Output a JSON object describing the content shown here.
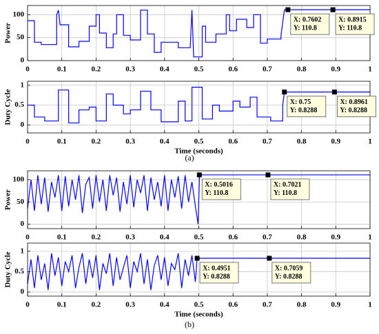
{
  "captions": [
    "(a)",
    "(b)"
  ],
  "chart_data": [
    {
      "type": "line",
      "ylabel": "Power",
      "color": "#0000ff",
      "grid": true,
      "xlim": [
        0,
        1
      ],
      "xticks": [
        0,
        0.1,
        0.2,
        0.3,
        0.4,
        0.5,
        0.6,
        0.7,
        0.8,
        0.9,
        1
      ],
      "ylim": [
        0,
        120
      ],
      "yticks": [
        0,
        50,
        100
      ],
      "x": [
        0,
        0.02,
        0.02,
        0.04,
        0.04,
        0.085,
        0.085,
        0.09,
        0.095,
        0.12,
        0.12,
        0.15,
        0.15,
        0.18,
        0.18,
        0.2,
        0.2,
        0.21,
        0.21,
        0.23,
        0.23,
        0.25,
        0.25,
        0.26,
        0.26,
        0.28,
        0.28,
        0.3,
        0.3,
        0.33,
        0.33,
        0.35,
        0.35,
        0.37,
        0.37,
        0.39,
        0.39,
        0.44,
        0.44,
        0.475,
        0.475,
        0.48,
        0.485,
        0.51,
        0.51,
        0.52,
        0.52,
        0.55,
        0.55,
        0.58,
        0.58,
        0.59,
        0.59,
        0.61,
        0.61,
        0.64,
        0.64,
        0.66,
        0.66,
        0.68,
        0.68,
        0.7,
        0.7,
        0.74,
        0.74,
        0.75,
        1
      ],
      "values": [
        87,
        87,
        40,
        40,
        35,
        35,
        100,
        110,
        78,
        78,
        30,
        30,
        42,
        42,
        75,
        75,
        100,
        100,
        60,
        60,
        28,
        28,
        58,
        58,
        100,
        100,
        55,
        55,
        45,
        45,
        110,
        110,
        58,
        58,
        18,
        18,
        40,
        40,
        28,
        28,
        30,
        110,
        8,
        8,
        75,
        75,
        40,
        40,
        58,
        58,
        100,
        100,
        65,
        65,
        90,
        90,
        72,
        72,
        100,
        100,
        38,
        38,
        47,
        47,
        55,
        110.8,
        110.8
      ],
      "datatips": [
        {
          "x": 0.7602,
          "y": 110.8,
          "x_label": "X: 0.7602",
          "y_label": "Y: 110.8"
        },
        {
          "x": 0.8915,
          "y": 110.8,
          "x_label": "X: 0.8915",
          "y_label": "Y: 110.8"
        }
      ]
    },
    {
      "type": "line",
      "ylabel": "Duty Cycle",
      "xlabel": "Time (seconds)",
      "color": "#0000ff",
      "grid": true,
      "xlim": [
        0,
        1
      ],
      "xticks": [
        0,
        0.1,
        0.2,
        0.3,
        0.4,
        0.5,
        0.6,
        0.7,
        0.8,
        0.9,
        1
      ],
      "ylim": [
        -0.2,
        1.1
      ],
      "yticks": [
        0,
        0.5,
        1
      ],
      "x": [
        0,
        0.02,
        0.02,
        0.05,
        0.05,
        0.09,
        0.09,
        0.12,
        0.12,
        0.15,
        0.15,
        0.18,
        0.18,
        0.2,
        0.2,
        0.23,
        0.23,
        0.25,
        0.25,
        0.28,
        0.28,
        0.3,
        0.3,
        0.33,
        0.33,
        0.36,
        0.36,
        0.39,
        0.39,
        0.44,
        0.44,
        0.46,
        0.46,
        0.48,
        0.48,
        0.51,
        0.51,
        0.54,
        0.54,
        0.56,
        0.56,
        0.6,
        0.6,
        0.62,
        0.62,
        0.65,
        0.65,
        0.67,
        0.67,
        0.71,
        0.71,
        0.745,
        0.745,
        0.75,
        1
      ],
      "values": [
        0.5,
        0.5,
        0.2,
        0.2,
        0.1,
        0.1,
        0.88,
        0.88,
        0.05,
        0.05,
        0.38,
        0.38,
        0.45,
        0.45,
        0.1,
        0.1,
        0.78,
        0.78,
        0.5,
        0.5,
        0.28,
        0.28,
        0.38,
        0.38,
        0.85,
        0.85,
        0.38,
        0.38,
        0.08,
        0.08,
        0.6,
        0.6,
        0.1,
        0.1,
        0.95,
        0.95,
        0.15,
        0.15,
        0.5,
        0.5,
        0.35,
        0.35,
        0.6,
        0.6,
        0.45,
        0.45,
        0.7,
        0.7,
        0.2,
        0.2,
        0.1,
        0.1,
        0.5,
        0.8288,
        0.8288
      ],
      "datatips": [
        {
          "x": 0.75,
          "y": 0.8288,
          "x_label": "X: 0.75",
          "y_label": "Y: 0.8288"
        },
        {
          "x": 0.8961,
          "y": 0.8288,
          "x_label": "X: 0.8961",
          "y_label": "Y: 0.8288"
        }
      ]
    },
    {
      "type": "line",
      "ylabel": "Power",
      "color": "#0000ff",
      "grid": true,
      "xlim": [
        0,
        1
      ],
      "xticks": [
        0,
        0.1,
        0.2,
        0.3,
        0.4,
        0.5,
        0.6,
        0.7,
        0.8,
        0.9,
        1
      ],
      "ylim": [
        -10,
        120
      ],
      "yticks": [
        0,
        50,
        100
      ],
      "x": [
        0,
        0.01,
        0.02,
        0.03,
        0.04,
        0.05,
        0.06,
        0.07,
        0.08,
        0.09,
        0.1,
        0.11,
        0.12,
        0.13,
        0.14,
        0.15,
        0.16,
        0.17,
        0.18,
        0.19,
        0.2,
        0.21,
        0.22,
        0.23,
        0.24,
        0.25,
        0.26,
        0.27,
        0.28,
        0.29,
        0.3,
        0.31,
        0.32,
        0.33,
        0.34,
        0.35,
        0.36,
        0.37,
        0.38,
        0.39,
        0.4,
        0.41,
        0.42,
        0.43,
        0.44,
        0.45,
        0.46,
        0.47,
        0.48,
        0.49,
        0.498,
        0.502,
        1
      ],
      "values": [
        35,
        100,
        30,
        110,
        45,
        105,
        28,
        95,
        60,
        110,
        30,
        108,
        40,
        100,
        55,
        110,
        25,
        90,
        105,
        35,
        110,
        50,
        100,
        30,
        110,
        65,
        105,
        28,
        95,
        45,
        110,
        38,
        100,
        70,
        110,
        30,
        105,
        55,
        95,
        40,
        110,
        30,
        100,
        60,
        108,
        35,
        110,
        50,
        95,
        40,
        0,
        110.8,
        110.8
      ],
      "datatips": [
        {
          "x": 0.5016,
          "y": 110.8,
          "x_label": "X: 0.5016",
          "y_label": "Y: 110.8"
        },
        {
          "x": 0.7021,
          "y": 110.8,
          "x_label": "X: 0.7021",
          "y_label": "Y: 110.8"
        }
      ]
    },
    {
      "type": "line",
      "ylabel": "Duty Cycle",
      "xlabel": "Time (seconds)",
      "color": "#0000ff",
      "grid": true,
      "xlim": [
        0,
        1
      ],
      "xticks": [
        0,
        0.1,
        0.2,
        0.3,
        0.4,
        0.5,
        0.6,
        0.7,
        0.8,
        0.9,
        1
      ],
      "ylim": [
        -0.1,
        1.2
      ],
      "yticks": [
        0,
        0.5,
        1
      ],
      "x": [
        0,
        0.01,
        0.02,
        0.03,
        0.04,
        0.05,
        0.06,
        0.07,
        0.08,
        0.09,
        0.1,
        0.11,
        0.12,
        0.13,
        0.14,
        0.15,
        0.16,
        0.17,
        0.18,
        0.19,
        0.2,
        0.21,
        0.22,
        0.23,
        0.24,
        0.25,
        0.26,
        0.27,
        0.28,
        0.29,
        0.3,
        0.31,
        0.32,
        0.33,
        0.34,
        0.35,
        0.36,
        0.37,
        0.38,
        0.39,
        0.4,
        0.41,
        0.42,
        0.43,
        0.44,
        0.45,
        0.46,
        0.47,
        0.48,
        0.49,
        0.495,
        1
      ],
      "values": [
        0.2,
        0.8,
        0.1,
        0.9,
        0.3,
        0.7,
        0.05,
        0.95,
        0.4,
        0.85,
        0.15,
        0.75,
        0.5,
        0.9,
        0.1,
        0.6,
        0.95,
        0.2,
        0.8,
        0.35,
        0.9,
        0.05,
        0.7,
        0.45,
        0.95,
        0.15,
        0.85,
        0.3,
        0.6,
        0.9,
        0.1,
        0.75,
        0.5,
        0.95,
        0.2,
        0.8,
        0.05,
        0.65,
        0.9,
        0.3,
        0.85,
        0.15,
        0.7,
        0.55,
        0.95,
        0.1,
        0.8,
        0.4,
        0.9,
        0.25,
        0.8288,
        0.8288
      ],
      "datatips": [
        {
          "x": 0.4951,
          "y": 0.8288,
          "x_label": "X: 0.4951",
          "y_label": "Y: 0.8288"
        },
        {
          "x": 0.7059,
          "y": 0.8288,
          "x_label": "X: 0.7059",
          "y_label": "Y: 0.8288"
        }
      ]
    }
  ]
}
